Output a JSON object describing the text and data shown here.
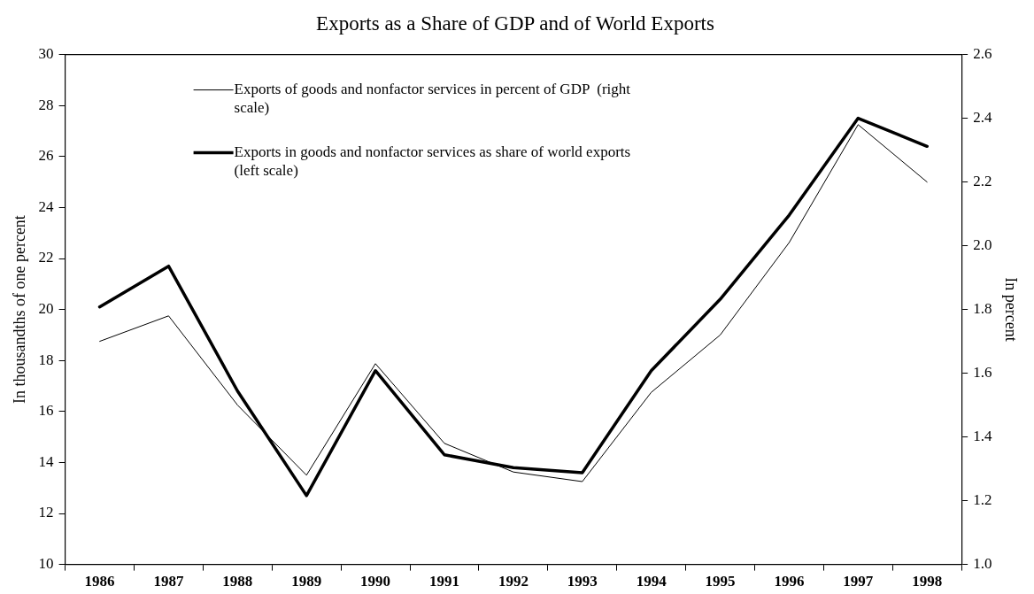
{
  "chart_data": {
    "type": "line",
    "title": "Exports as a Share of GDP and of World Exports",
    "ylabel": "In thousandths of one percent",
    "y2label": "In percent",
    "categories": [
      "1986",
      "1987",
      "1988",
      "1989",
      "1990",
      "1991",
      "1992",
      "1993",
      "1994",
      "1995",
      "1996",
      "1997",
      "1998"
    ],
    "series": [
      {
        "name": "Exports of goods and nonfactor services in percent of GDP  (right scale)",
        "color": "#000000",
        "axis": "y2",
        "values": [
          1.7,
          1.78,
          1.5,
          1.28,
          1.63,
          1.38,
          1.29,
          1.26,
          1.54,
          1.72,
          2.01,
          2.38,
          2.2
        ]
      },
      {
        "name": "Exports in goods and nonfactor services as share of world exports (left scale)",
        "color": "#000000",
        "values": [
          20.1,
          21.7,
          16.8,
          12.7,
          17.6,
          14.3,
          13.8,
          13.6,
          17.6,
          20.4,
          23.7,
          27.5,
          26.4
        ]
      }
    ],
    "ylim": [
      10,
      30
    ],
    "yticks": [
      10,
      12,
      14,
      16,
      18,
      20,
      22,
      24,
      26,
      28,
      30
    ],
    "y2lim": [
      1.0,
      2.6
    ],
    "y2ticks": [
      {
        "value": 1.0,
        "label": "1.0"
      },
      {
        "value": 1.2,
        "label": "1.2"
      },
      {
        "value": 1.4,
        "label": "1.4"
      },
      {
        "value": 1.6,
        "label": "1.6"
      },
      {
        "value": 1.8,
        "label": "1.8"
      },
      {
        "value": 2.0,
        "label": "2.0"
      },
      {
        "value": 2.2,
        "label": "2.2"
      },
      {
        "value": 2.4,
        "label": "2.4"
      },
      {
        "value": 2.6,
        "label": "2.6"
      }
    ],
    "grid": false,
    "legend": "top left",
    "marker": "none",
    "line_style": "solid"
  }
}
